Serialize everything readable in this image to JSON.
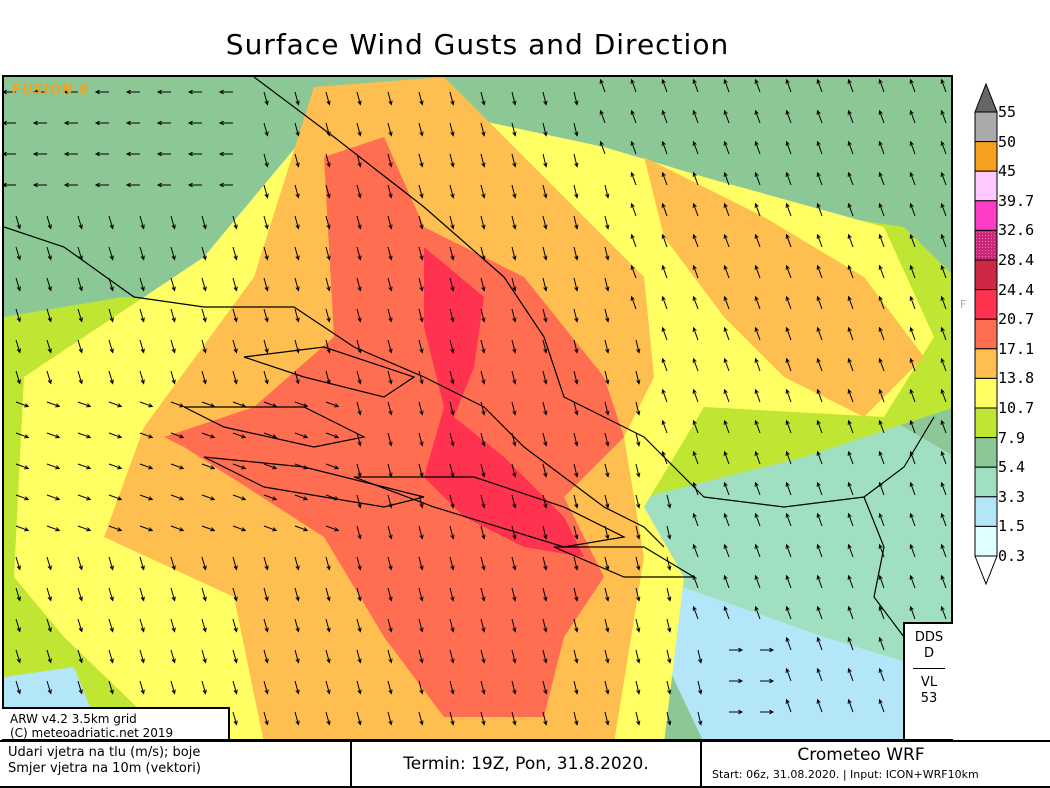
{
  "title": "Surface Wind Gusts and Direction",
  "logo_text": "FUSION 8",
  "info": {
    "line1": "ARW v4.2 3.5km grid",
    "line2": "(C) meteoadriatic.net 2019"
  },
  "station_box": {
    "top": "DDS",
    "mid": "D",
    "bottom1": "VL",
    "bottom2": "53"
  },
  "legend_marker": "F",
  "footer": {
    "desc_line1": "Udari vjetra na tlu (m/s); boje",
    "desc_line2": "Smjer vjetra na 10m (vektori)",
    "termin": "Termin: 19Z, Pon, 31.8.2020.",
    "model": "Crometeo WRF",
    "start": "Start: 06z, 31.08.2020. | Input: ICON+WRF10km"
  },
  "legend": {
    "unit": "m/s",
    "bins": [
      {
        "label": "0.3",
        "color": "#e0ffff"
      },
      {
        "label": "1.5",
        "color": "#b4e6fa"
      },
      {
        "label": "3.3",
        "color": "#a0e0c0"
      },
      {
        "label": "5.4",
        "color": "#8cc896"
      },
      {
        "label": "7.9",
        "color": "#bee632"
      },
      {
        "label": "10.7",
        "color": "#ffff64"
      },
      {
        "label": "13.8",
        "color": "#ffbe50"
      },
      {
        "label": "17.1",
        "color": "#ff6e50"
      },
      {
        "label": "20.7",
        "color": "#ff3250"
      },
      {
        "label": "24.4",
        "color": "#cd2846"
      },
      {
        "label": "28.4",
        "color": "#c8287a"
      },
      {
        "label": "32.6",
        "color": "#ff3cc8"
      },
      {
        "label": "39.7",
        "color": "#ffc8ff"
      },
      {
        "label": "45",
        "color": "#f5a01e"
      },
      {
        "label": "50",
        "color": "#aaaaaa"
      },
      {
        "label": "55",
        "color": "#666666"
      }
    ]
  }
}
